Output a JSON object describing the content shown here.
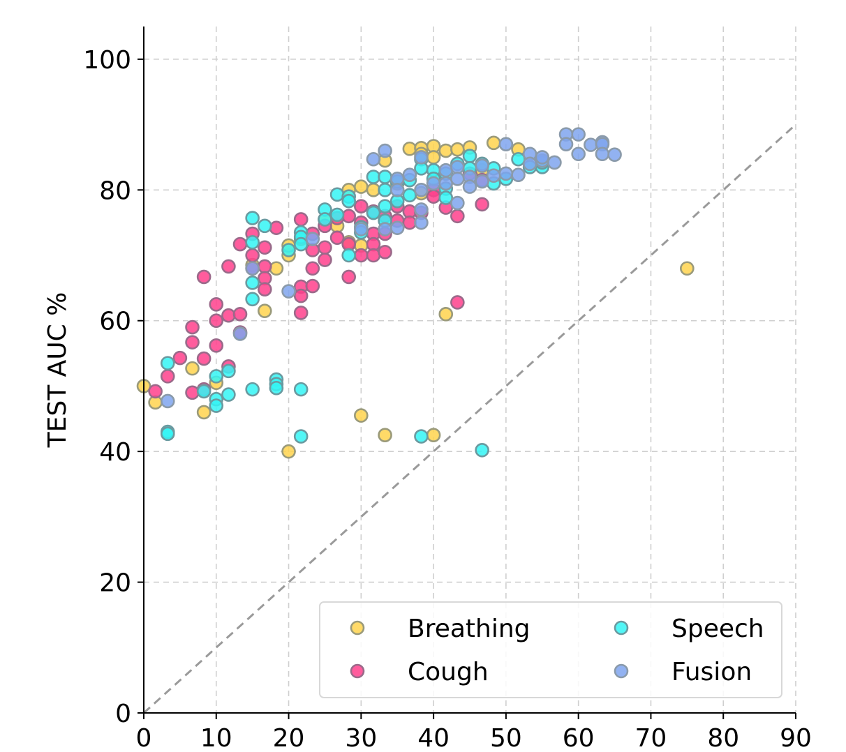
{
  "chart_data": {
    "type": "scatter",
    "title": "",
    "xlabel": "",
    "ylabel": "TEST AUC %",
    "xlim": [
      0,
      90
    ],
    "ylim": [
      0,
      105
    ],
    "xticks": [
      0,
      10,
      20,
      30,
      40,
      50,
      60,
      70,
      80,
      90
    ],
    "yticks": [
      0,
      20,
      40,
      60,
      80,
      100
    ],
    "grid": true,
    "reference_line": {
      "style": "dashed",
      "color": "#9a9a9a",
      "from": [
        0,
        0
      ],
      "to": [
        90,
        90
      ]
    },
    "legend": {
      "placement": "lower-right",
      "columns": 2
    },
    "series": [
      {
        "name": "Breathing",
        "color": "#ffd34d",
        "edge": "#9a9a7a",
        "points": [
          [
            0,
            50
          ],
          [
            1.6,
            47.5
          ],
          [
            6.7,
            52.7
          ],
          [
            8.3,
            46
          ],
          [
            10,
            50.5
          ],
          [
            15,
            68.5
          ],
          [
            16.7,
            61.5
          ],
          [
            18.3,
            68
          ],
          [
            20,
            40
          ],
          [
            20,
            70
          ],
          [
            20,
            71.5
          ],
          [
            21.7,
            72.5
          ],
          [
            25,
            75.5
          ],
          [
            26.7,
            74.5
          ],
          [
            28.3,
            80
          ],
          [
            28.3,
            72
          ],
          [
            30,
            80.5
          ],
          [
            30,
            71.5
          ],
          [
            30,
            45.5
          ],
          [
            31.7,
            80
          ],
          [
            33.3,
            84.5
          ],
          [
            33.3,
            42.5
          ],
          [
            35,
            81
          ],
          [
            36.7,
            86.3
          ],
          [
            38.3,
            86.4
          ],
          [
            38.3,
            85.5
          ],
          [
            38.3,
            79.5
          ],
          [
            40,
            86.7
          ],
          [
            40,
            85
          ],
          [
            40,
            42.5
          ],
          [
            41.7,
            61
          ],
          [
            41.7,
            86
          ],
          [
            43.3,
            86.2
          ],
          [
            45,
            86.5
          ],
          [
            46.7,
            83
          ],
          [
            48.3,
            87.2
          ],
          [
            51.7,
            86.2
          ],
          [
            75,
            68
          ]
        ]
      },
      {
        "name": "Cough",
        "color": "#ff3f8c",
        "edge": "#9a6a8a",
        "points": [
          [
            1.6,
            49.2
          ],
          [
            3.3,
            51.5
          ],
          [
            5,
            54.3
          ],
          [
            6.7,
            59
          ],
          [
            6.7,
            56.7
          ],
          [
            6.7,
            49
          ],
          [
            8.3,
            66.7
          ],
          [
            8.3,
            54.2
          ],
          [
            8.3,
            49.5
          ],
          [
            10,
            62.5
          ],
          [
            10,
            60
          ],
          [
            10,
            56.2
          ],
          [
            11.7,
            68.3
          ],
          [
            11.7,
            60.8
          ],
          [
            11.7,
            53
          ],
          [
            13.3,
            71.7
          ],
          [
            13.3,
            61
          ],
          [
            13.3,
            58.2
          ],
          [
            15,
            73.3
          ],
          [
            15,
            70
          ],
          [
            15,
            68
          ],
          [
            16.7,
            71.2
          ],
          [
            16.7,
            68.3
          ],
          [
            16.7,
            66.5
          ],
          [
            16.7,
            64.8
          ],
          [
            18.3,
            74.2
          ],
          [
            21.7,
            75.5
          ],
          [
            21.7,
            65.2
          ],
          [
            21.7,
            63.8
          ],
          [
            21.7,
            61.2
          ],
          [
            23.3,
            73.3
          ],
          [
            23.3,
            70.8
          ],
          [
            23.3,
            68
          ],
          [
            23.3,
            65.3
          ],
          [
            25,
            74.5
          ],
          [
            25,
            71.2
          ],
          [
            25,
            69.3
          ],
          [
            26.7,
            75.7
          ],
          [
            26.7,
            72.7
          ],
          [
            28.3,
            76
          ],
          [
            28.3,
            71.7
          ],
          [
            28.3,
            66.7
          ],
          [
            30,
            77.5
          ],
          [
            30,
            75
          ],
          [
            30,
            70
          ],
          [
            31.7,
            76.7
          ],
          [
            31.7,
            73.3
          ],
          [
            31.7,
            71.7
          ],
          [
            31.7,
            70
          ],
          [
            33.3,
            76
          ],
          [
            33.3,
            73.3
          ],
          [
            33.3,
            70.5
          ],
          [
            35,
            77.5
          ],
          [
            35,
            75.3
          ],
          [
            36.7,
            76.7
          ],
          [
            36.7,
            75
          ],
          [
            38.3,
            76.5
          ],
          [
            40,
            80
          ],
          [
            40,
            79
          ],
          [
            41.7,
            77.3
          ],
          [
            43.3,
            76
          ],
          [
            43.3,
            62.8
          ],
          [
            45,
            82.5
          ],
          [
            46.7,
            77.8
          ],
          [
            46.7,
            81.5
          ]
        ]
      },
      {
        "name": "Speech",
        "color": "#34f4f4",
        "edge": "#6a9aa0",
        "points": [
          [
            3.3,
            53.5
          ],
          [
            3.3,
            43
          ],
          [
            3.3,
            42.7
          ],
          [
            8.3,
            49.2
          ],
          [
            10,
            51.5
          ],
          [
            10,
            48
          ],
          [
            10,
            47
          ],
          [
            11.7,
            52.3
          ],
          [
            11.7,
            48.7
          ],
          [
            15,
            75.7
          ],
          [
            15,
            72
          ],
          [
            15,
            65.8
          ],
          [
            15,
            63.3
          ],
          [
            15,
            49.5
          ],
          [
            16.7,
            74.5
          ],
          [
            18.3,
            51
          ],
          [
            18.3,
            50.3
          ],
          [
            18.3,
            49.7
          ],
          [
            20,
            70.8
          ],
          [
            21.7,
            73.5
          ],
          [
            21.7,
            72.8
          ],
          [
            21.7,
            71.7
          ],
          [
            21.7,
            49.5
          ],
          [
            21.7,
            42.3
          ],
          [
            25,
            77
          ],
          [
            25,
            75.5
          ],
          [
            26.7,
            79.3
          ],
          [
            26.7,
            76.2
          ],
          [
            28.3,
            79
          ],
          [
            28.3,
            78.3
          ],
          [
            28.3,
            70
          ],
          [
            30,
            74.3
          ],
          [
            30,
            73.5
          ],
          [
            31.7,
            82
          ],
          [
            31.7,
            76.5
          ],
          [
            33.3,
            82
          ],
          [
            33.3,
            80
          ],
          [
            33.3,
            77.5
          ],
          [
            33.3,
            75.3
          ],
          [
            35,
            81.3
          ],
          [
            35,
            78.3
          ],
          [
            36.7,
            81.5
          ],
          [
            36.7,
            79.2
          ],
          [
            38.3,
            84.7
          ],
          [
            38.3,
            83.3
          ],
          [
            38.3,
            42.3
          ],
          [
            40,
            83
          ],
          [
            40,
            81.7
          ],
          [
            41.7,
            82.5
          ],
          [
            41.7,
            80.2
          ],
          [
            41.7,
            78.8
          ],
          [
            43.3,
            84
          ],
          [
            45,
            85.2
          ],
          [
            45,
            83.3
          ],
          [
            46.7,
            84
          ],
          [
            46.7,
            40.2
          ],
          [
            48.3,
            83.3
          ],
          [
            48.3,
            81
          ],
          [
            50,
            81.7
          ],
          [
            51.7,
            84.7
          ],
          [
            53.3,
            83.5
          ],
          [
            55,
            83.5
          ],
          [
            55,
            84.2
          ]
        ]
      },
      {
        "name": "Fusion",
        "color": "#7fa4ee",
        "edge": "#8a9aaa",
        "points": [
          [
            3.3,
            47.7
          ],
          [
            13.3,
            58
          ],
          [
            15,
            68
          ],
          [
            20,
            64.5
          ],
          [
            23.3,
            72.5
          ],
          [
            30,
            74
          ],
          [
            31.7,
            84.7
          ],
          [
            33.3,
            86
          ],
          [
            33.3,
            74
          ],
          [
            35,
            81.7
          ],
          [
            35,
            80
          ],
          [
            35,
            74.2
          ],
          [
            36.7,
            82.3
          ],
          [
            38.3,
            85
          ],
          [
            38.3,
            80
          ],
          [
            38.3,
            77
          ],
          [
            38.3,
            75
          ],
          [
            40,
            81
          ],
          [
            41.7,
            83
          ],
          [
            41.7,
            81
          ],
          [
            43.3,
            83.5
          ],
          [
            43.3,
            81.7
          ],
          [
            43.3,
            78
          ],
          [
            45,
            82
          ],
          [
            45,
            80.5
          ],
          [
            46.7,
            83.7
          ],
          [
            46.7,
            81.3
          ],
          [
            48.3,
            82.2
          ],
          [
            50,
            87
          ],
          [
            50,
            82.5
          ],
          [
            51.7,
            82.3
          ],
          [
            53.3,
            85.5
          ],
          [
            53.3,
            84
          ],
          [
            55,
            84.5
          ],
          [
            55,
            85
          ],
          [
            56.7,
            84.2
          ],
          [
            58.3,
            88.5
          ],
          [
            58.3,
            87
          ],
          [
            60,
            88.5
          ],
          [
            60,
            85.5
          ],
          [
            61.7,
            86.9
          ],
          [
            63.3,
            87.3
          ],
          [
            63.3,
            87
          ],
          [
            63.3,
            85.5
          ],
          [
            65,
            85.4
          ]
        ]
      }
    ]
  }
}
